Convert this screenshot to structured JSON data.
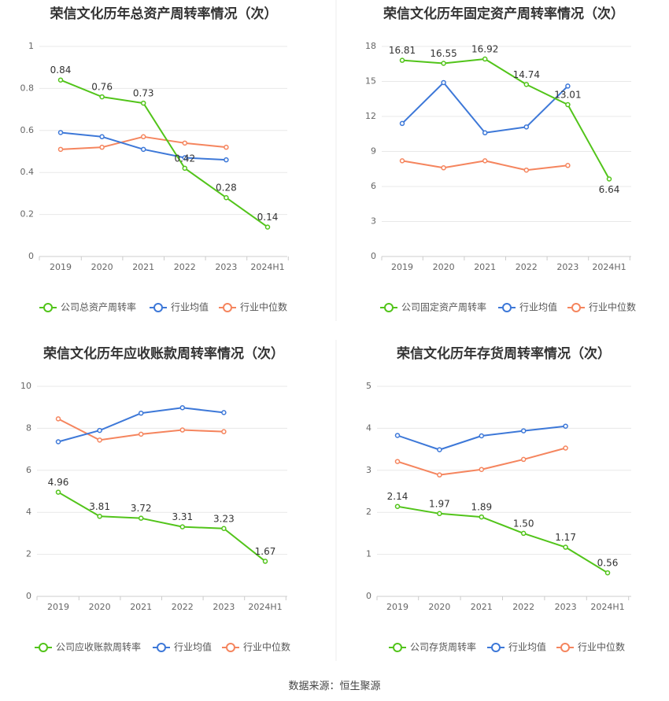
{
  "source": "数据来源：恒生聚源",
  "chart_data": [
    {
      "type": "line",
      "title": "荣信文化历年总资产周转率情况（次）",
      "categories": [
        "2019",
        "2020",
        "2021",
        "2022",
        "2023",
        "2024H1"
      ],
      "ylim": [
        0,
        1
      ],
      "yticks": [
        0,
        0.2,
        0.4,
        0.6,
        0.8,
        1
      ],
      "yticklabels": [
        "0",
        "0.2",
        "0.4",
        "0.6",
        "0.8",
        "1"
      ],
      "grid": true,
      "legend_position": "bottom",
      "series": [
        {
          "name": "公司总资产周转率",
          "color": "#52c41a",
          "values": [
            0.84,
            0.76,
            0.73,
            0.42,
            0.28,
            0.14
          ],
          "labels": [
            "0.84",
            "0.76",
            "0.73",
            "0.42",
            "0.28",
            "0.14"
          ]
        },
        {
          "name": "行业均值",
          "color": "#3d78d8",
          "values": [
            0.59,
            0.57,
            0.51,
            0.47,
            0.46,
            null
          ]
        },
        {
          "name": "行业中位数",
          "color": "#f5855e",
          "values": [
            0.51,
            0.52,
            0.57,
            0.54,
            0.52,
            null
          ]
        }
      ]
    },
    {
      "type": "line",
      "title": "荣信文化历年固定资产周转率情况（次）",
      "categories": [
        "2019",
        "2020",
        "2021",
        "2022",
        "2023",
        "2024H1"
      ],
      "ylim": [
        0,
        18
      ],
      "yticks": [
        0,
        3,
        6,
        9,
        12,
        15,
        18
      ],
      "yticklabels": [
        "0",
        "3",
        "6",
        "9",
        "12",
        "15",
        "18"
      ],
      "grid": true,
      "legend_position": "bottom",
      "series": [
        {
          "name": "公司固定资产周转率",
          "color": "#52c41a",
          "values": [
            16.81,
            16.55,
            16.92,
            14.74,
            13.01,
            6.64
          ],
          "labels": [
            "16.81",
            "16.55",
            "16.92",
            "14.74",
            "13.01",
            "6.64"
          ]
        },
        {
          "name": "行业均值",
          "color": "#3d78d8",
          "values": [
            11.4,
            14.9,
            10.6,
            11.1,
            14.6,
            null
          ]
        },
        {
          "name": "行业中位数",
          "color": "#f5855e",
          "values": [
            8.2,
            7.6,
            8.2,
            7.4,
            7.8,
            null
          ]
        }
      ]
    },
    {
      "type": "line",
      "title": "荣信文化历年应收账款周转率情况（次）",
      "categories": [
        "2019",
        "2020",
        "2021",
        "2022",
        "2023",
        "2024H1"
      ],
      "ylim": [
        0,
        10
      ],
      "yticks": [
        0,
        2,
        4,
        6,
        8,
        10
      ],
      "yticklabels": [
        "0",
        "2",
        "4",
        "6",
        "8",
        "10"
      ],
      "grid": true,
      "legend_position": "bottom",
      "series": [
        {
          "name": "公司应收账款周转率",
          "color": "#52c41a",
          "values": [
            4.96,
            3.81,
            3.72,
            3.31,
            3.23,
            1.67
          ],
          "labels": [
            "4.96",
            "3.81",
            "3.72",
            "3.31",
            "3.23",
            "1.67"
          ]
        },
        {
          "name": "行业均值",
          "color": "#3d78d8",
          "values": [
            7.36,
            7.9,
            8.72,
            8.98,
            8.75,
            null
          ]
        },
        {
          "name": "行业中位数",
          "color": "#f5855e",
          "values": [
            8.45,
            7.44,
            7.72,
            7.92,
            7.84,
            null
          ]
        }
      ]
    },
    {
      "type": "line",
      "title": "荣信文化历年存货周转率情况（次）",
      "categories": [
        "2019",
        "2020",
        "2021",
        "2022",
        "2023",
        "2024H1"
      ],
      "ylim": [
        0,
        5
      ],
      "yticks": [
        0,
        1,
        2,
        3,
        4,
        5
      ],
      "yticklabels": [
        "0",
        "1",
        "2",
        "3",
        "4",
        "5"
      ],
      "grid": true,
      "legend_position": "bottom",
      "series": [
        {
          "name": "公司存货周转率",
          "color": "#52c41a",
          "values": [
            2.14,
            1.97,
            1.89,
            1.5,
            1.17,
            0.56
          ],
          "labels": [
            "2.14",
            "1.97",
            "1.89",
            "1.50",
            "1.17",
            "0.56"
          ]
        },
        {
          "name": "行业均值",
          "color": "#3d78d8",
          "values": [
            3.83,
            3.49,
            3.82,
            3.94,
            4.05,
            null
          ]
        },
        {
          "name": "行业中位数",
          "color": "#f5855e",
          "values": [
            3.21,
            2.89,
            3.02,
            3.26,
            3.53,
            null
          ]
        }
      ]
    }
  ]
}
